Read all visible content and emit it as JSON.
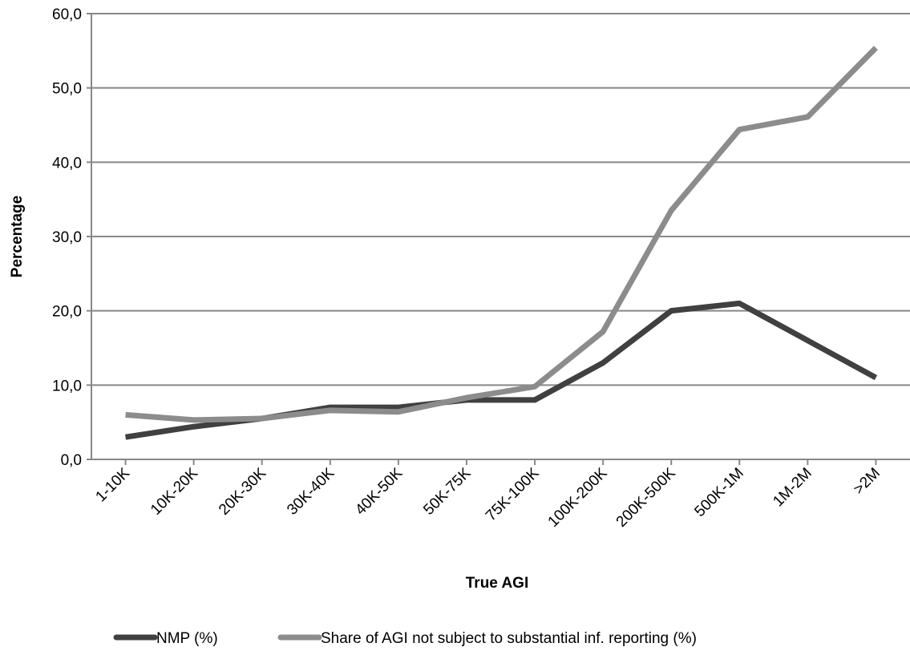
{
  "chart_data": {
    "type": "line",
    "x_label": "True AGI",
    "y_label": "Percentage",
    "categories": [
      "1-10K",
      "10K-20K",
      "20K-30K",
      "30K-40K",
      "40K-50K",
      "50K-75K",
      "75K-100K",
      "100K-200K",
      "200K-500K",
      "500K-1M",
      "1M-2M",
      ">2M"
    ],
    "series": [
      {
        "name": "NMP (%)",
        "color": "#404040",
        "values": [
          3.0,
          4.4,
          5.5,
          7.0,
          7.0,
          8.0,
          8.0,
          13.0,
          20.0,
          21.0,
          16.0,
          11.0
        ]
      },
      {
        "name": "Share of AGI not subject to substantial inf. reporting (%)",
        "color": "#8c8c8c",
        "values": [
          6.0,
          5.3,
          5.5,
          6.6,
          6.4,
          8.3,
          9.8,
          17.2,
          33.5,
          44.4,
          46.1,
          55.4
        ]
      }
    ],
    "ylim": [
      0,
      60
    ],
    "yticks": [
      {
        "value": 0,
        "label": "0,0"
      },
      {
        "value": 10,
        "label": "10,0"
      },
      {
        "value": 20,
        "label": "20,0"
      },
      {
        "value": 30,
        "label": "30,0"
      },
      {
        "value": 40,
        "label": "40,0"
      },
      {
        "value": 50,
        "label": "50,0"
      },
      {
        "value": 60,
        "label": "60,0"
      }
    ],
    "grid": true,
    "legend": "bottom"
  }
}
